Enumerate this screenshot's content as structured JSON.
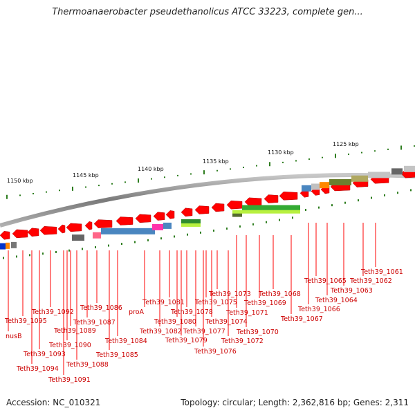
{
  "title": "Thermoanaerobacter pseudethanolicus ATCC 33223, complete gen...",
  "footer": {
    "accession": "Accession: NC_010321",
    "topology": "Topology: circular; Length: 2,362,816 bp; Genes: 2,311"
  },
  "scale_labels": [
    "1150 kbp",
    "1145 kbp",
    "1140 kbp",
    "1135 kbp",
    "1130 kbp",
    "1125 kbp"
  ],
  "gene_labels": [
    "Teth39_1061",
    "Teth39_1062",
    "Teth39_1063",
    "Teth39_1064",
    "Teth39_1065",
    "Teth39_1066",
    "Teth39_1067",
    "Teth39_1068",
    "Teth39_1069",
    "Teth39_1070",
    "Teth39_1071",
    "Teth39_1072",
    "Teth39_1073",
    "Teth39_1074",
    "Teth39_1075",
    "Teth39_1076",
    "Teth39_1077",
    "Teth39_1078",
    "Teth39_1079",
    "Teth39_1080",
    "Teth39_1081",
    "Teth39_1082",
    "proA",
    "Teth39_1084",
    "Teth39_1085",
    "Teth39_1086",
    "Teth39_1087",
    "Teth39_1088",
    "Teth39_1089",
    "Teth39_1090",
    "Teth39_1091",
    "Teth39_1092",
    "Teth39_1093",
    "Teth39_1094",
    "Teth39_1095",
    "nusB"
  ],
  "colors": {
    "gene": "#ff0000",
    "label": "#cc0000",
    "tick": "#2e7d1f",
    "backbone": "#8a8a8a"
  }
}
